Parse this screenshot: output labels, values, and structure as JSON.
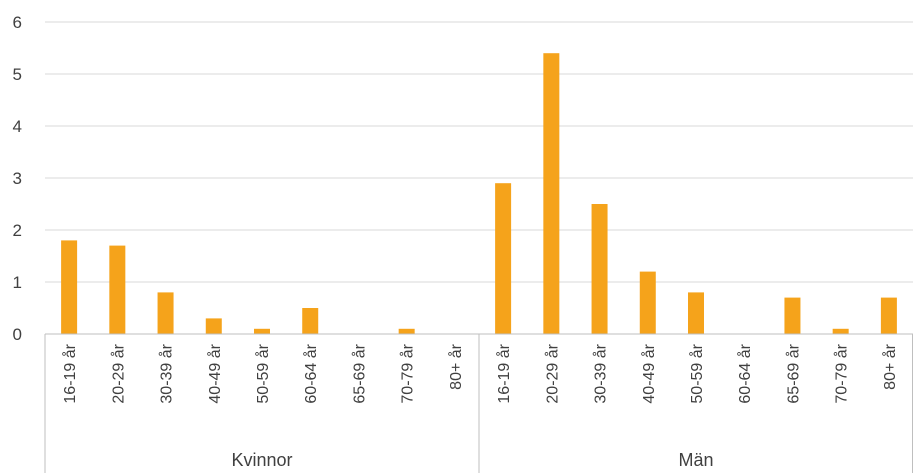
{
  "chart_data": {
    "type": "bar",
    "title": "",
    "xlabel": "",
    "ylabel": "",
    "ylim": [
      0,
      6
    ],
    "yticks": [
      0,
      1,
      2,
      3,
      4,
      5,
      6
    ],
    "grid": true,
    "legend": "none",
    "bar_color": "#F5A31B",
    "groups": [
      {
        "name": "Kvinnor",
        "categories": [
          "16-19 år",
          "20-29 år",
          "30-39 år",
          "40-49 år",
          "50-59 år",
          "60-64 år",
          "65-69 år",
          "70-79 år",
          "80+ år"
        ],
        "values": [
          1.8,
          1.7,
          0.8,
          0.3,
          0.1,
          0.5,
          0,
          0.1,
          0
        ]
      },
      {
        "name": "Män",
        "categories": [
          "16-19 år",
          "20-29 år",
          "30-39 år",
          "40-49 år",
          "50-59 år",
          "60-64 år",
          "65-69 år",
          "70-79 år",
          "80+ år"
        ],
        "values": [
          2.9,
          5.4,
          2.5,
          1.2,
          0.8,
          0,
          0.7,
          0.1,
          0.7
        ]
      }
    ]
  }
}
